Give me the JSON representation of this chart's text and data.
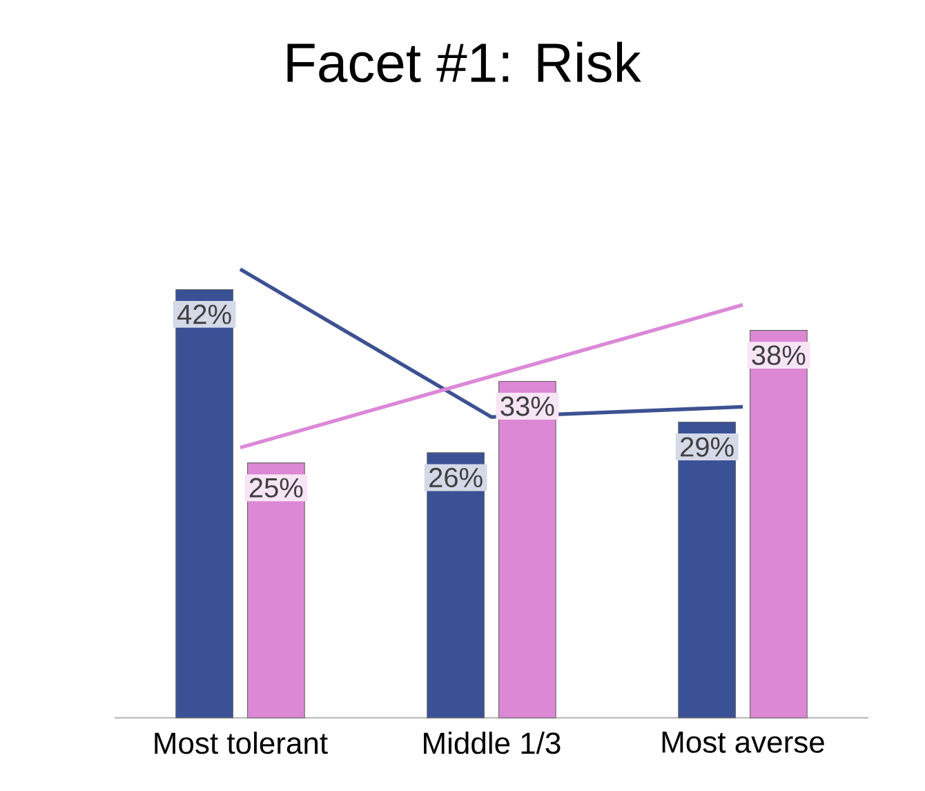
{
  "chart_data": {
    "type": "bar",
    "title": "Facet #1: Risk",
    "categories": [
      "Most tolerant",
      "Middle 1/3",
      "Most averse"
    ],
    "series": [
      {
        "color": "#3b5196",
        "values": [
          42,
          26,
          29
        ],
        "value_labels": [
          "42%",
          "26%",
          "29%"
        ]
      },
      {
        "color": "#dc88d4",
        "values": [
          25,
          33,
          38
        ],
        "value_labels": [
          "25%",
          "33%",
          "38%"
        ]
      },
      {
        "type": "line",
        "color": "#3d5192",
        "values": [
          44,
          29.5,
          30.5
        ]
      },
      {
        "type": "line",
        "color": "#dc88d8",
        "values": [
          26.5,
          33.5,
          40.5
        ]
      }
    ]
  }
}
